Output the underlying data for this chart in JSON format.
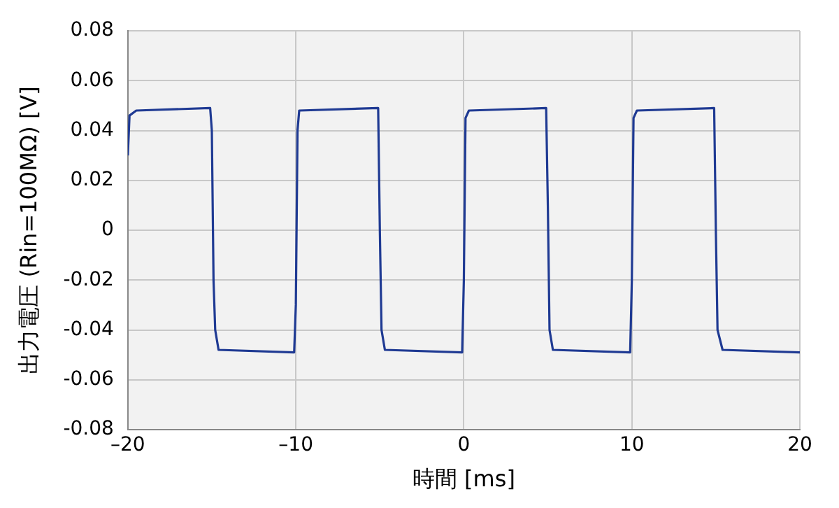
{
  "chart_data": {
    "type": "line",
    "xlabel": "時間 [ms]",
    "ylabel": "出力電圧 (Rin=100MΩ) [V]",
    "xlim": [
      -20,
      20
    ],
    "xticks": [
      {
        "value": -20,
        "label": "–20"
      },
      {
        "value": -10,
        "label": "–10"
      },
      0,
      10,
      20
    ],
    "ylim": [
      -0.08,
      0.08
    ],
    "yticks": [
      -0.08,
      -0.06,
      -0.04,
      -0.02,
      0,
      0.02,
      0.04,
      0.06,
      0.08
    ],
    "grid": true,
    "legend": false,
    "marker": "none",
    "line_style": "solid",
    "series": [
      {
        "color": "#1f3a93",
        "x": [
          -20,
          -19.9,
          -19.5,
          -15.1,
          -15,
          -14.9,
          -14.8,
          -14.6,
          -10.1,
          -10,
          -9.9,
          -9.8,
          -5.1,
          -5,
          -4.9,
          -4.7,
          -0.1,
          0,
          0.1,
          0.3,
          4.9,
          5,
          5.1,
          5.3,
          9.9,
          10,
          10.1,
          10.3,
          14.9,
          15,
          15.1,
          15.4,
          20
        ],
        "values": [
          0.03,
          0.046,
          0.048,
          0.049,
          0.04,
          -0.02,
          -0.04,
          -0.048,
          -0.049,
          -0.03,
          0.04,
          0.048,
          0.049,
          0,
          -0.04,
          -0.048,
          -0.049,
          -0.02,
          0.045,
          0.048,
          0.049,
          0.01,
          -0.04,
          -0.048,
          -0.049,
          -0.02,
          0.045,
          0.048,
          0.049,
          0,
          -0.04,
          -0.048,
          -0.049
        ]
      }
    ]
  }
}
